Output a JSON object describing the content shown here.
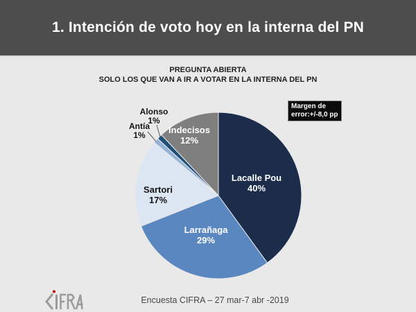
{
  "header": {
    "title": "1. Intención de voto hoy en la interna del PN"
  },
  "subtitle": {
    "line1": "PREGUNTA ABIERTA",
    "line2": "SOLO LOS QUE VAN A IR A VOTAR EN LA INTERNA DEL PN"
  },
  "error_box": {
    "line1": "Margen de",
    "line2": "error:+/-8,0 pp"
  },
  "footer": {
    "caption": "Encuesta CIFRA – 27 mar-7 abr -2019",
    "logo": {
      "text": "CIFRA",
      "color": "#9a9a9a",
      "dot_color": "#c00000"
    }
  },
  "colors": {
    "background": "#e9e9e9",
    "title_band": "#4d4d4d",
    "title_text": "#ffffff",
    "error_box_bg": "#0b0b0b"
  },
  "chart_data": {
    "type": "pie",
    "title": "1. Intención de voto hoy en la interna del PN",
    "note": "Margen de error:+/-8,0 pp",
    "start_angle": "12 o'clock, clockwise",
    "slices": [
      {
        "label": "Lacalle Pou",
        "value": 40,
        "color": "#1b2d4b",
        "label_position": "inside"
      },
      {
        "label": "Larrañaga",
        "value": 29,
        "color": "#5b87c0",
        "label_position": "inside"
      },
      {
        "label": "Sartori",
        "value": 17,
        "color": "#dce6f2",
        "label_position": "inside"
      },
      {
        "label": "Antía",
        "value": 1,
        "color": "#95b3d7",
        "label_position": "outside"
      },
      {
        "label": "Alonso",
        "value": 1,
        "color": "#1f4e79",
        "label_position": "outside"
      },
      {
        "label": "Indecisos",
        "value": 12,
        "color": "#7f7f7f",
        "label_position": "inside"
      }
    ]
  }
}
